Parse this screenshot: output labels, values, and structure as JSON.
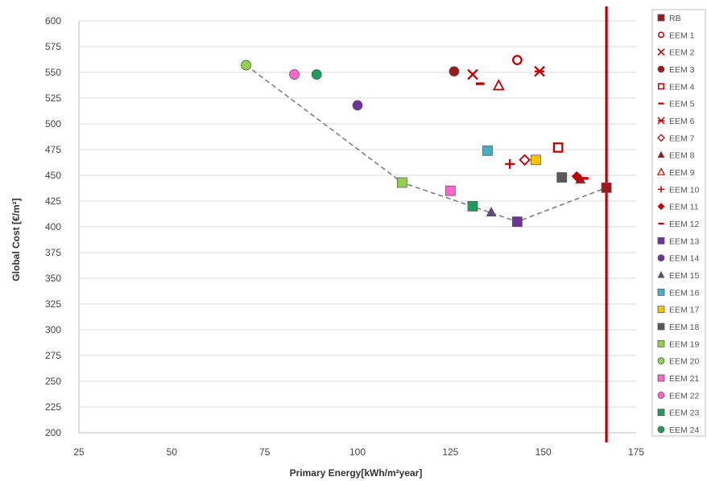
{
  "chart_data": {
    "type": "scatter",
    "xlabel": "Primary Energy[kWh/m²year]",
    "ylabel": "Global Cost [€/m²]",
    "xlim": [
      25,
      175
    ],
    "ylim": [
      200,
      600
    ],
    "xticks": [
      25,
      50,
      75,
      100,
      125,
      150,
      175
    ],
    "yticks": [
      200,
      225,
      250,
      275,
      300,
      325,
      350,
      375,
      400,
      425,
      450,
      475,
      500,
      525,
      550,
      575,
      600
    ],
    "grid": "horizontal",
    "legend_position": "right",
    "reference_line": {
      "x": 167,
      "color": "#c00000"
    },
    "pareto_front": [
      [
        70,
        557
      ],
      [
        112,
        443
      ],
      [
        143,
        405
      ],
      [
        167,
        438
      ]
    ],
    "series": [
      {
        "name": "RB",
        "marker": "square",
        "color": "#9b1b1b",
        "x": 167,
        "y": 438
      },
      {
        "name": "EEM 1",
        "marker": "circle-open",
        "color": "#c00000",
        "x": 143,
        "y": 562
      },
      {
        "name": "EEM 2",
        "marker": "x",
        "color": "#c00000",
        "x": 131,
        "y": 548
      },
      {
        "name": "EEM 3",
        "marker": "circle",
        "color": "#9b1b1b",
        "x": 126,
        "y": 551
      },
      {
        "name": "EEM 4",
        "marker": "square-open",
        "color": "#c00000",
        "x": 154,
        "y": 477
      },
      {
        "name": "EEM 5",
        "marker": "dash",
        "color": "#c00000",
        "x": 133,
        "y": 539
      },
      {
        "name": "EEM 6",
        "marker": "asterisk",
        "color": "#c00000",
        "x": 149,
        "y": 551
      },
      {
        "name": "EEM 7",
        "marker": "diamond-open",
        "color": "#c00000",
        "x": 145,
        "y": 465
      },
      {
        "name": "EEM 8",
        "marker": "triangle",
        "color": "#9b1b1b",
        "x": 160,
        "y": 446
      },
      {
        "name": "EEM 9",
        "marker": "triangle-open",
        "color": "#c00000",
        "x": 138,
        "y": 537
      },
      {
        "name": "EEM 10",
        "marker": "plus",
        "color": "#c00000",
        "x": 141,
        "y": 461
      },
      {
        "name": "EEM 11",
        "marker": "diamond",
        "color": "#c00000",
        "x": 159,
        "y": 449
      },
      {
        "name": "EEM 12",
        "marker": "dash",
        "color": "#c00000",
        "x": 161,
        "y": 447
      },
      {
        "name": "EEM 13",
        "marker": "square",
        "color": "#7030a0",
        "x": 143,
        "y": 405
      },
      {
        "name": "EEM 14",
        "marker": "circle",
        "color": "#7030a0",
        "x": 100,
        "y": 518
      },
      {
        "name": "EEM 15",
        "marker": "triangle",
        "color": "#604a7b",
        "x": 136,
        "y": 414
      },
      {
        "name": "EEM 16",
        "marker": "square",
        "color": "#4bacc6",
        "x": 135,
        "y": 474
      },
      {
        "name": "EEM 17",
        "marker": "square",
        "color": "#ffc000",
        "x": 148,
        "y": 465
      },
      {
        "name": "EEM 18",
        "marker": "square",
        "color": "#595959",
        "x": 155,
        "y": 448
      },
      {
        "name": "EEM 19",
        "marker": "square",
        "color": "#92d050",
        "x": 112,
        "y": 443
      },
      {
        "name": "EEM 20",
        "marker": "circle",
        "color": "#92d050",
        "x": 70,
        "y": 557
      },
      {
        "name": "EEM 21",
        "marker": "square",
        "color": "#ff66cc",
        "x": 125,
        "y": 435
      },
      {
        "name": "EEM 22",
        "marker": "circle",
        "color": "#ff66cc",
        "x": 83,
        "y": 548
      },
      {
        "name": "EEM 23",
        "marker": "square",
        "color": "#1e9c5b",
        "x": 131,
        "y": 420
      },
      {
        "name": "EEM 24",
        "marker": "circle",
        "color": "#1e9c5b",
        "x": 89,
        "y": 548
      }
    ]
  }
}
